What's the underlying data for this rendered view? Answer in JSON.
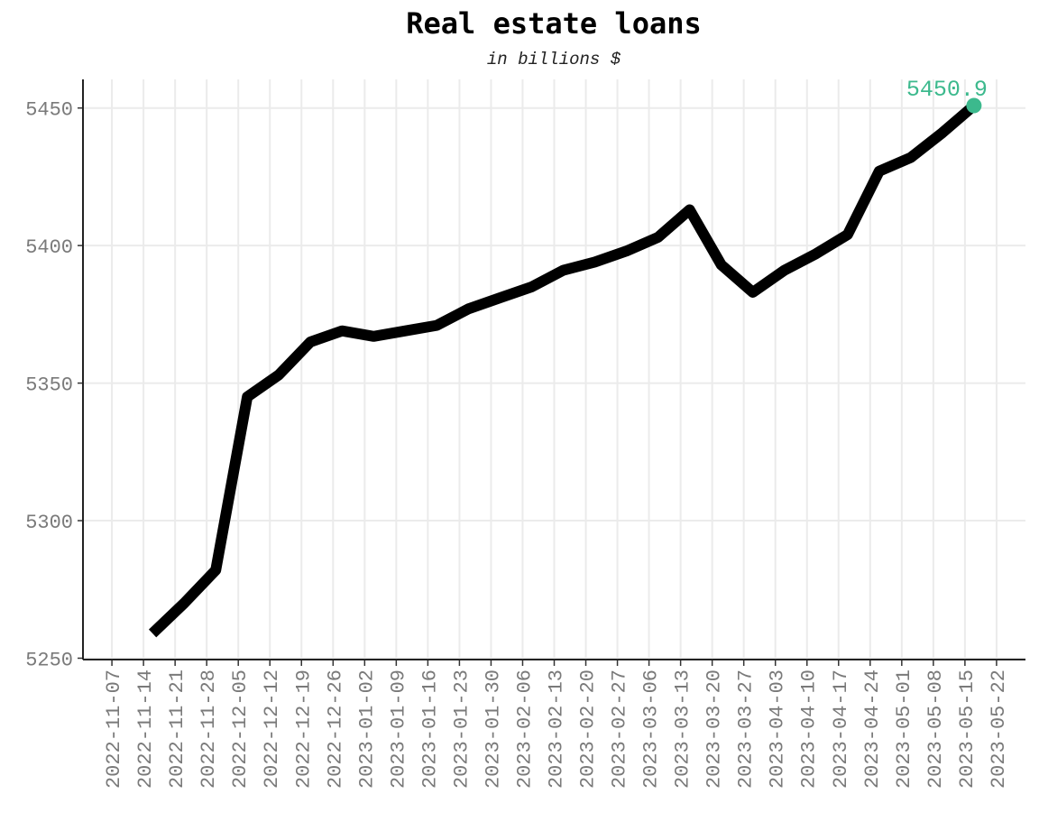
{
  "chart_data": {
    "type": "line",
    "title": "Real estate loans",
    "subtitle": "in billions $",
    "xlabel": "",
    "ylabel": "",
    "x_ticks": [
      "2022-11-07",
      "2022-11-14",
      "2022-11-21",
      "2022-11-28",
      "2022-12-05",
      "2022-12-12",
      "2022-12-19",
      "2022-12-26",
      "2023-01-02",
      "2023-01-09",
      "2023-01-16",
      "2023-01-23",
      "2023-01-30",
      "2023-02-06",
      "2023-02-13",
      "2023-02-20",
      "2023-02-27",
      "2023-03-06",
      "2023-03-13",
      "2023-03-20",
      "2023-03-27",
      "2023-04-03",
      "2023-04-10",
      "2023-04-17",
      "2023-04-24",
      "2023-05-01",
      "2023-05-08",
      "2023-05-15",
      "2023-05-22"
    ],
    "y_ticks": [
      5250,
      5300,
      5350,
      5400,
      5450
    ],
    "ylim": [
      5250,
      5460
    ],
    "grid": true,
    "series": [
      {
        "color": "#000000",
        "points": [
          {
            "x": "2022-11-16",
            "y": 5259
          },
          {
            "x": "2022-11-23",
            "y": 5270
          },
          {
            "x": "2022-11-30",
            "y": 5282
          },
          {
            "x": "2022-12-07",
            "y": 5345
          },
          {
            "x": "2022-12-14",
            "y": 5353
          },
          {
            "x": "2022-12-21",
            "y": 5365
          },
          {
            "x": "2022-12-28",
            "y": 5369
          },
          {
            "x": "2023-01-04",
            "y": 5367
          },
          {
            "x": "2023-01-11",
            "y": 5369
          },
          {
            "x": "2023-01-18",
            "y": 5371
          },
          {
            "x": "2023-01-25",
            "y": 5377
          },
          {
            "x": "2023-02-01",
            "y": 5381
          },
          {
            "x": "2023-02-08",
            "y": 5385
          },
          {
            "x": "2023-02-15",
            "y": 5391
          },
          {
            "x": "2023-02-22",
            "y": 5394
          },
          {
            "x": "2023-03-01",
            "y": 5398
          },
          {
            "x": "2023-03-08",
            "y": 5403
          },
          {
            "x": "2023-03-15",
            "y": 5413
          },
          {
            "x": "2023-03-22",
            "y": 5393
          },
          {
            "x": "2023-03-29",
            "y": 5383
          },
          {
            "x": "2023-04-05",
            "y": 5391
          },
          {
            "x": "2023-04-12",
            "y": 5397
          },
          {
            "x": "2023-04-19",
            "y": 5404
          },
          {
            "x": "2023-04-26",
            "y": 5427
          },
          {
            "x": "2023-05-03",
            "y": 5432
          },
          {
            "x": "2023-05-10",
            "y": 5441
          },
          {
            "x": "2023-05-17",
            "y": 5450.9
          }
        ]
      }
    ],
    "last_point": {
      "x": "2023-05-17",
      "y": 5450.9,
      "label": "5450.9",
      "color": "#3cb98d"
    }
  }
}
